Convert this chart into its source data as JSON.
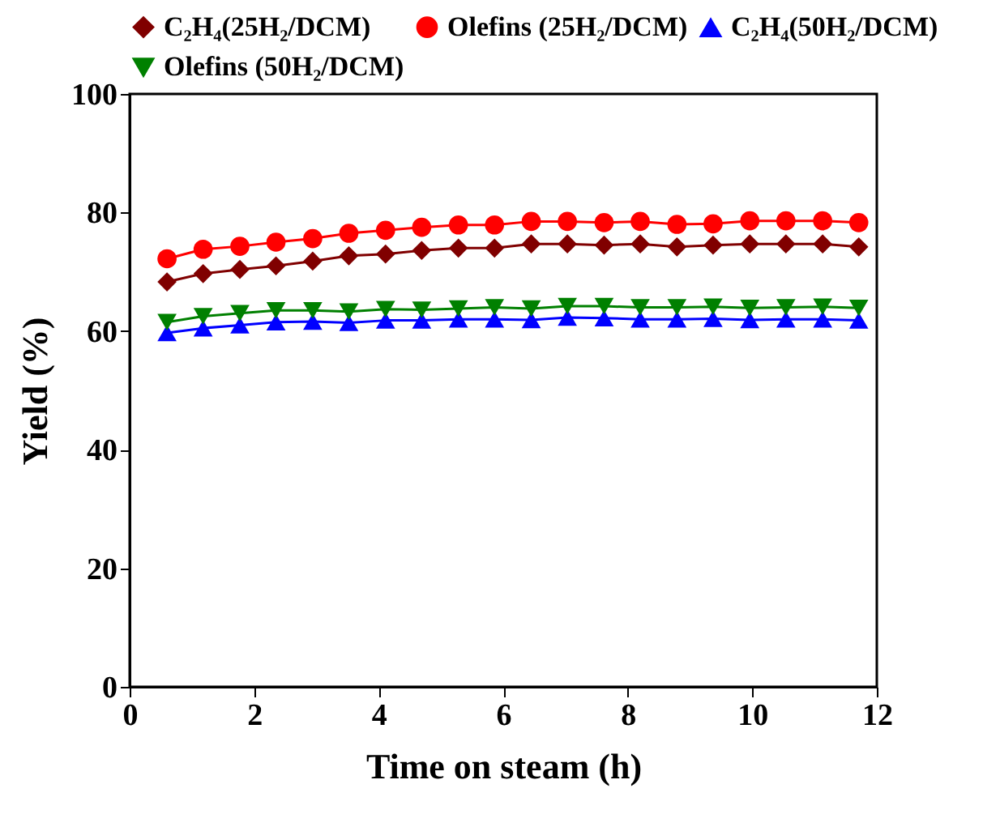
{
  "chart_data": {
    "type": "line",
    "xlabel": "Time on steam (h)",
    "ylabel": "Yield (%)",
    "x": [
      0.6,
      1.18,
      1.77,
      2.35,
      2.94,
      3.52,
      4.11,
      4.69,
      5.28,
      5.86,
      6.45,
      7.03,
      7.62,
      8.2,
      8.79,
      9.37,
      9.96,
      10.54,
      11.13,
      11.71
    ],
    "xlim": [
      0,
      12
    ],
    "xticks": [
      0,
      2,
      4,
      6,
      8,
      10,
      12
    ],
    "ylim": [
      0,
      100
    ],
    "yticks": [
      0,
      20,
      40,
      60,
      80,
      100
    ],
    "grid": false,
    "legend": "top",
    "series": [
      {
        "name": "C₂H₄(25H₂/DCM)",
        "color": "#800000",
        "marker": "diamond",
        "values": [
          68.3,
          69.7,
          70.4,
          71,
          71.8,
          72.7,
          73,
          73.6,
          74,
          74,
          74.7,
          74.7,
          74.5,
          74.7,
          74.2,
          74.5,
          74.7,
          74.7,
          74.7,
          74.2
        ]
      },
      {
        "name": "Olefins (25H₂/DCM)",
        "color": "#ff0000",
        "marker": "circle",
        "values": [
          72.2,
          73.8,
          74.3,
          75,
          75.6,
          76.5,
          77,
          77.5,
          77.9,
          77.9,
          78.5,
          78.5,
          78.3,
          78.5,
          78,
          78.1,
          78.6,
          78.6,
          78.6,
          78.3
        ]
      },
      {
        "name": "C₂H₄(50H₂/DCM)",
        "color": "#0000ff",
        "marker": "triangle",
        "values": [
          59.7,
          60.5,
          61,
          61.5,
          61.6,
          61.4,
          61.8,
          61.8,
          62,
          62,
          61.9,
          62.3,
          62.2,
          62,
          62,
          62.1,
          61.9,
          62,
          62,
          61.8
        ]
      },
      {
        "name": "Olefins (50H₂/DCM)",
        "color": "#008000",
        "marker": "triangle-down",
        "values": [
          61.5,
          62.5,
          63,
          63.5,
          63.5,
          63.3,
          63.7,
          63.6,
          63.8,
          64,
          63.8,
          64.2,
          64.2,
          64,
          64,
          64.1,
          63.9,
          64,
          64.1,
          63.9
        ]
      }
    ]
  }
}
